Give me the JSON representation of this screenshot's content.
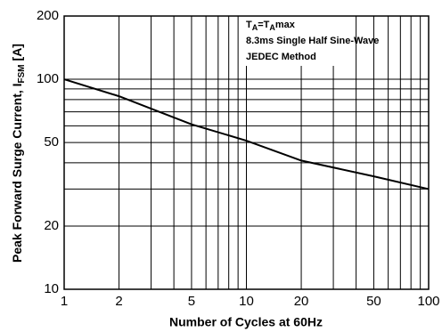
{
  "chart_data": {
    "type": "line",
    "xlabel": "Number of Cycles at 60Hz",
    "ylabel": [
      "Peak Forward Surge Current, I",
      "FSM",
      " [A]"
    ],
    "annotation": [
      [
        "T",
        "A",
        "=T",
        "A",
        "max"
      ],
      "8.3ms Single Half Sine-Wave",
      "JEDEC Method"
    ],
    "x": [
      1,
      2,
      5,
      10,
      20,
      50,
      100
    ],
    "series": [
      {
        "color": "#000000",
        "values": [
          100,
          83,
          61,
          51,
          41,
          34.5,
          30
        ]
      }
    ],
    "xlim": [
      1,
      100
    ],
    "ylim": [
      10,
      200
    ],
    "xticks": [
      1,
      2,
      5,
      10,
      20,
      50,
      100
    ],
    "yticks": [
      10,
      20,
      50,
      100,
      200
    ],
    "x_minor_grid": [
      3,
      4,
      6,
      7,
      8,
      9,
      30,
      40,
      60,
      70,
      80,
      90
    ],
    "y_minor_grid": [
      30,
      40,
      60,
      70,
      80,
      90
    ],
    "xscale": "log",
    "yscale": "log",
    "grid": true
  }
}
